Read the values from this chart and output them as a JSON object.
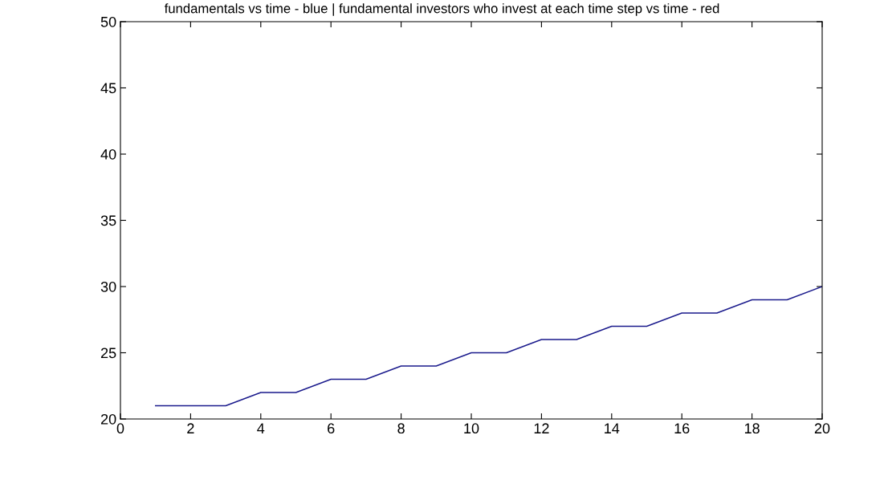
{
  "chart_data": {
    "type": "line",
    "title": "fundamentals vs time - blue | fundamental investors who invest at each time step vs time - red",
    "x": [
      1,
      2,
      3,
      4,
      5,
      6,
      7,
      8,
      9,
      10,
      11,
      12,
      13,
      14,
      15,
      16,
      17,
      18,
      19,
      20
    ],
    "series": [
      {
        "color": "#1a1a8c",
        "values": [
          21,
          21,
          21,
          22,
          22,
          23,
          23,
          24,
          24,
          25,
          25,
          26,
          26,
          27,
          27,
          28,
          28,
          29,
          29,
          30
        ]
      }
    ],
    "xlim": [
      0,
      20
    ],
    "xticks": [
      0,
      2,
      4,
      6,
      8,
      10,
      12,
      14,
      16,
      18,
      20
    ],
    "ylim": [
      20,
      50
    ],
    "yticks": [
      20,
      25,
      30,
      35,
      40,
      45,
      50
    ],
    "grid": false,
    "legend": false,
    "marker": "none",
    "line_style": "solid"
  }
}
